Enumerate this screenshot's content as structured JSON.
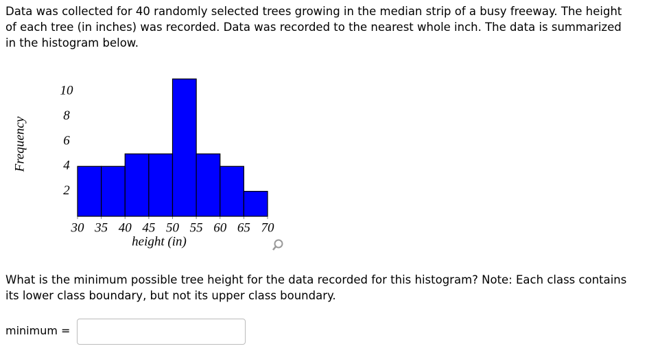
{
  "intro": "Data was collected for 40 randomly selected trees growing in the median strip of a busy freeway. The height of each tree (in inches) was recorded. Data was recorded to the nearest whole inch. The data is summarized in the histogram below.",
  "chart_data": {
    "type": "histogram",
    "xlabel": "height (in)",
    "ylabel": "Frequency",
    "bins": [
      30,
      35,
      40,
      45,
      50,
      55,
      60,
      65,
      70
    ],
    "values": [
      4,
      4,
      5,
      5,
      11,
      5,
      4,
      2
    ],
    "color": "#0000ff",
    "xlim": [
      30,
      70
    ],
    "xticks": [
      30,
      35,
      40,
      45,
      50,
      55,
      60,
      65,
      70
    ],
    "ylim": [
      0,
      11
    ],
    "yticks": [
      2,
      4,
      6,
      8,
      10
    ],
    "grid": false
  },
  "question": "What is the minimum possible tree height for the data recorded for this histogram? Note: Each class contains its lower class boundary, but not its upper class boundary.",
  "answer_label": "minimum ="
}
